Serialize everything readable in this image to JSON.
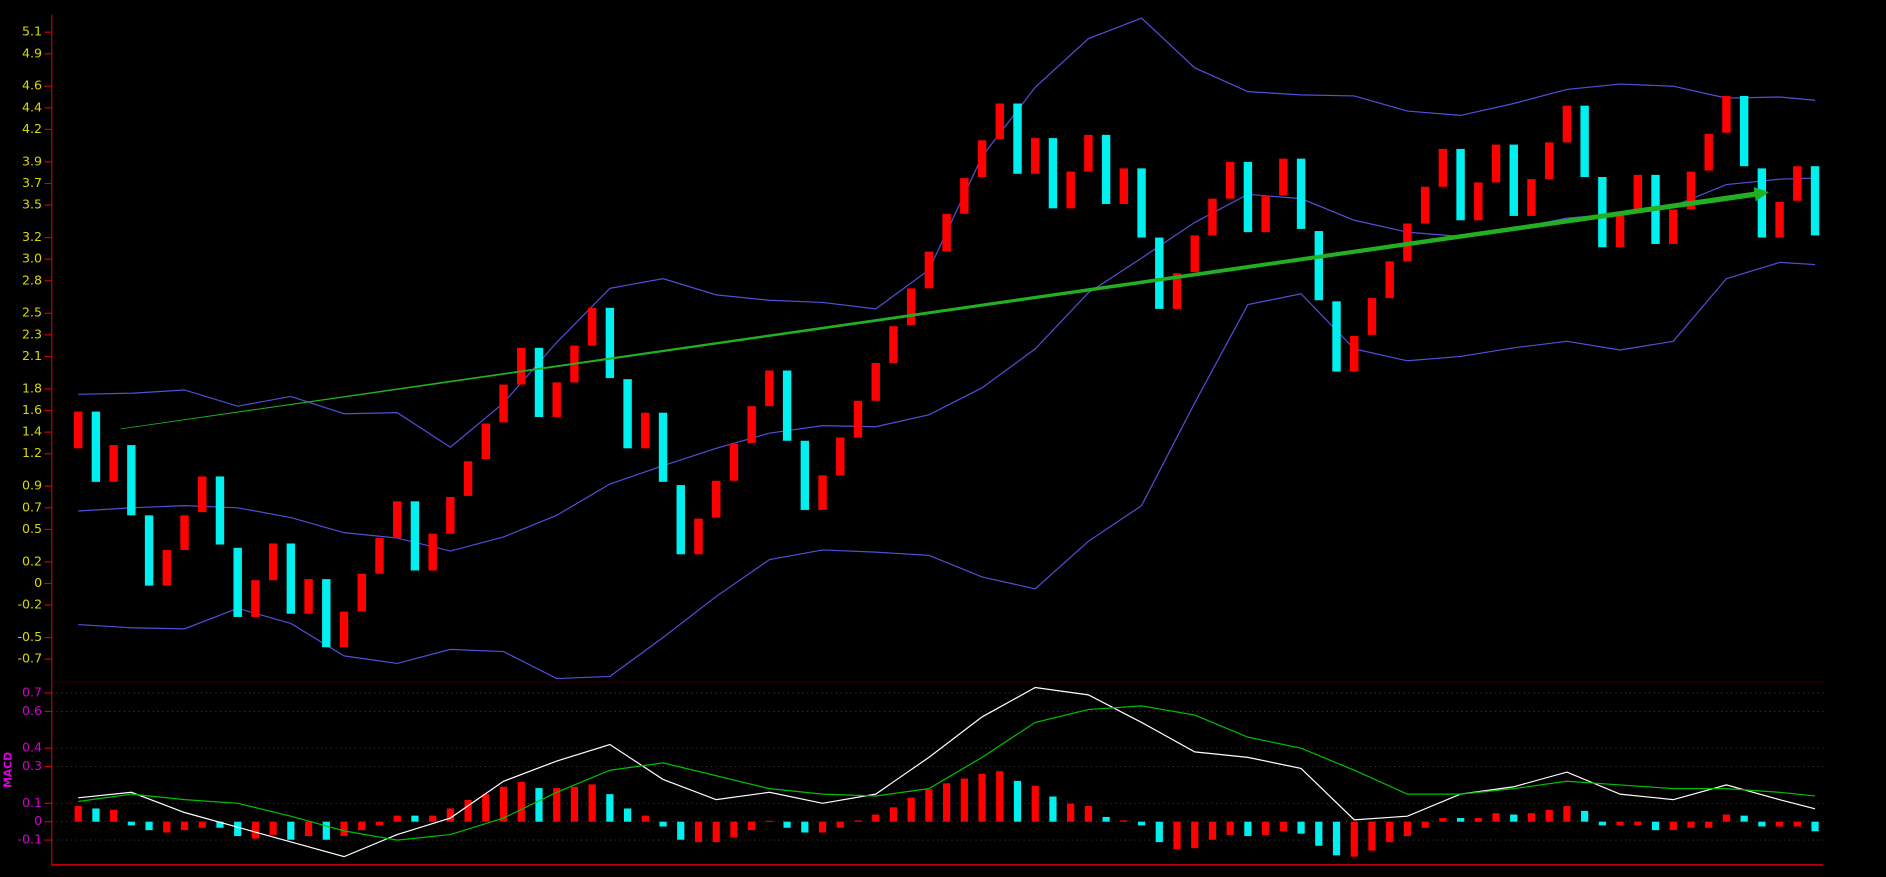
{
  "chart_data": [
    {
      "type": "candlestick",
      "open": [
        1.25,
        1.59,
        0.94,
        1.28,
        0.63,
        -0.02,
        0.31,
        0.66,
        0.99,
        0.33,
        -0.31,
        0.03,
        0.37,
        -0.28,
        0.04,
        -0.59,
        -0.26,
        0.09,
        0.42,
        0.76,
        0.12,
        0.46,
        0.81,
        1.15,
        1.49,
        1.84,
        2.18,
        1.54,
        1.86,
        2.2,
        2.55,
        1.89,
        1.25,
        1.58,
        0.91,
        0.27,
        0.61,
        0.95,
        1.3,
        1.64,
        1.97,
        1.32,
        0.68,
        1.0,
        1.35,
        1.69,
        2.04,
        2.39,
        2.73,
        3.07,
        3.42,
        3.76,
        4.11,
        4.44,
        3.79,
        4.12,
        3.47,
        3.81,
        4.15,
        3.51,
        3.84,
        3.2,
        2.54,
        2.88,
        3.22,
        3.56,
        3.9,
        3.25,
        3.59,
        3.93,
        3.26,
        2.61,
        1.96,
        2.3,
        2.64,
        2.98,
        3.33,
        3.67,
        4.02,
        3.36,
        3.71,
        4.06,
        3.4,
        3.74,
        4.08,
        4.42,
        3.76,
        3.11,
        3.43,
        3.78,
        3.14,
        3.46,
        3.82,
        4.17,
        4.51,
        3.84,
        3.2,
        3.54,
        3.86
      ],
      "close": [
        1.59,
        0.94,
        1.28,
        0.63,
        -0.02,
        0.31,
        0.63,
        0.99,
        0.36,
        -0.31,
        0.03,
        0.37,
        -0.28,
        0.04,
        -0.59,
        -0.26,
        0.09,
        0.42,
        0.76,
        0.12,
        0.46,
        0.8,
        1.13,
        1.48,
        1.84,
        2.18,
        1.54,
        1.86,
        2.2,
        2.55,
        1.9,
        1.25,
        1.58,
        0.94,
        0.27,
        0.6,
        0.95,
        1.29,
        1.64,
        1.97,
        1.32,
        0.68,
        1.0,
        1.35,
        1.69,
        2.04,
        2.38,
        2.73,
        3.07,
        3.42,
        3.75,
        4.1,
        4.44,
        3.79,
        4.12,
        3.47,
        3.81,
        4.15,
        3.51,
        3.84,
        3.2,
        2.54,
        2.87,
        3.22,
        3.56,
        3.9,
        3.25,
        3.59,
        3.93,
        3.28,
        2.62,
        1.96,
        2.29,
        2.64,
        2.98,
        3.33,
        3.67,
        4.02,
        3.36,
        3.71,
        4.06,
        3.4,
        3.74,
        4.08,
        4.42,
        3.76,
        3.11,
        3.43,
        3.78,
        3.14,
        3.46,
        3.81,
        4.16,
        4.51,
        3.86,
        3.2,
        3.53,
        3.86,
        3.22
      ],
      "up_color": "#ff0000",
      "down_color": "#00f0f0",
      "bands": [
        {
          "color": "#5050d8",
          "x": [
            0,
            3,
            6,
            9,
            12,
            15,
            18,
            21,
            24,
            27,
            30,
            33,
            36,
            39,
            42,
            45,
            48,
            51,
            54,
            57,
            60,
            63,
            66,
            69,
            72,
            75,
            78,
            81,
            84,
            87,
            90,
            93,
            96,
            98
          ],
          "values": [
            1.75,
            1.76,
            1.79,
            1.64,
            1.73,
            1.57,
            1.58,
            1.26,
            1.67,
            2.23,
            2.73,
            2.82,
            2.67,
            2.62,
            2.6,
            2.54,
            2.9,
            3.95,
            4.59,
            5.04,
            5.23,
            4.77,
            4.55,
            4.52,
            4.51,
            4.37,
            4.33,
            4.44,
            4.57,
            4.62,
            4.6,
            4.49,
            4.5,
            4.47
          ]
        },
        {
          "color": "#5050d8",
          "x": [
            0,
            3,
            6,
            9,
            12,
            15,
            18,
            21,
            24,
            27,
            30,
            33,
            36,
            39,
            42,
            45,
            48,
            51,
            54,
            57,
            60,
            63,
            66,
            69,
            72,
            75,
            78,
            81,
            84,
            87,
            90,
            93,
            96,
            98
          ],
          "values": [
            0.67,
            0.7,
            0.72,
            0.7,
            0.61,
            0.47,
            0.42,
            0.3,
            0.43,
            0.63,
            0.92,
            1.09,
            1.25,
            1.39,
            1.46,
            1.45,
            1.56,
            1.81,
            2.17,
            2.69,
            3.01,
            3.34,
            3.6,
            3.56,
            3.36,
            3.25,
            3.21,
            3.28,
            3.38,
            3.42,
            3.49,
            3.69,
            3.74,
            3.75
          ]
        },
        {
          "color": "#5050d8",
          "x": [
            0,
            3,
            6,
            9,
            12,
            15,
            18,
            21,
            24,
            27,
            30,
            33,
            36,
            39,
            42,
            45,
            48,
            51,
            54,
            57,
            60,
            63,
            66,
            69,
            72,
            75,
            78,
            81,
            84,
            87,
            90,
            93,
            96,
            98
          ],
          "values": [
            -0.38,
            -0.41,
            -0.42,
            -0.23,
            -0.37,
            -0.67,
            -0.74,
            -0.61,
            -0.63,
            -0.88,
            -0.86,
            -0.5,
            -0.12,
            0.22,
            0.31,
            0.29,
            0.26,
            0.06,
            -0.05,
            0.39,
            0.72,
            1.67,
            2.58,
            2.68,
            2.17,
            2.06,
            2.1,
            2.18,
            2.24,
            2.16,
            2.24,
            2.82,
            2.97,
            2.95
          ]
        }
      ],
      "trend": {
        "color": "#22b022",
        "x": [
          2.4,
          95.4
        ],
        "values": [
          1.43,
          3.62
        ]
      },
      "ylim": [
        -0.89,
        5.23
      ],
      "yticks": [
        5.1,
        4.9,
        4.6,
        4.4,
        4.2,
        3.9,
        3.7,
        3.5,
        3.2,
        {
          "value": 3,
          "label": "3.0"
        },
        2.8,
        2.5,
        2.3,
        2.1,
        1.8,
        1.6,
        1.4,
        1.2,
        0.9,
        0.7,
        0.5,
        0.2,
        0,
        -0.2,
        -0.5,
        -0.7
      ]
    },
    {
      "type": "macd",
      "title": "MACD",
      "histogram": [
        0.085,
        0.072,
        0.065,
        -0.02,
        -0.046,
        -0.059,
        -0.046,
        -0.033,
        -0.033,
        -0.078,
        -0.092,
        -0.072,
        -0.098,
        -0.078,
        -0.098,
        -0.078,
        -0.046,
        -0.02,
        0.033,
        0.033,
        0.033,
        0.072,
        0.118,
        0.15,
        0.19,
        0.216,
        0.183,
        0.183,
        0.19,
        0.203,
        0.15,
        0.072,
        0.033,
        -0.026,
        -0.098,
        -0.111,
        -0.111,
        -0.085,
        -0.046,
        0.005,
        -0.033,
        -0.059,
        -0.059,
        -0.033,
        0.007,
        0.039,
        0.078,
        0.131,
        0.176,
        0.209,
        0.235,
        0.261,
        0.275,
        0.222,
        0.196,
        0.137,
        0.098,
        0.085,
        0.026,
        0.007,
        -0.02,
        -0.111,
        -0.15,
        -0.144,
        -0.098,
        -0.072,
        -0.078,
        -0.072,
        -0.052,
        -0.065,
        -0.131,
        -0.183,
        -0.19,
        -0.157,
        -0.111,
        -0.078,
        -0.033,
        0.02,
        0.02,
        0.02,
        0.046,
        0.039,
        0.046,
        0.065,
        0.085,
        0.059,
        -0.02,
        -0.02,
        -0.02,
        -0.046,
        -0.046,
        -0.033,
        -0.033,
        0.039,
        0.033,
        -0.026,
        -0.026,
        -0.026,
        -0.052
      ],
      "series": [
        {
          "color": "#ffffff",
          "x": [
            0,
            3,
            6,
            9,
            12,
            15,
            18,
            21,
            24,
            27,
            30,
            33,
            36,
            39,
            42,
            45,
            48,
            51,
            54,
            57,
            60,
            63,
            66,
            69,
            72,
            75,
            78,
            81,
            84,
            87,
            90,
            93,
            96,
            98
          ],
          "values": [
            0.13,
            0.16,
            0.05,
            -0.03,
            -0.11,
            -0.19,
            -0.07,
            0.02,
            0.22,
            0.33,
            0.42,
            0.23,
            0.12,
            0.16,
            0.1,
            0.15,
            0.35,
            0.57,
            0.73,
            0.69,
            0.54,
            0.38,
            0.35,
            0.29,
            0.01,
            0.03,
            0.15,
            0.19,
            0.27,
            0.15,
            0.12,
            0.2,
            0.12,
            0.07
          ]
        },
        {
          "color": "#00c000",
          "x": [
            0,
            3,
            6,
            9,
            12,
            15,
            18,
            21,
            24,
            27,
            30,
            33,
            36,
            39,
            42,
            45,
            48,
            51,
            54,
            57,
            60,
            63,
            66,
            69,
            72,
            75,
            78,
            81,
            84,
            87,
            90,
            93,
            96,
            98
          ],
          "values": [
            0.11,
            0.15,
            0.12,
            0.1,
            0.03,
            -0.05,
            -0.1,
            -0.07,
            0.02,
            0.16,
            0.28,
            0.32,
            0.25,
            0.18,
            0.15,
            0.14,
            0.18,
            0.35,
            0.54,
            0.61,
            0.63,
            0.58,
            0.46,
            0.4,
            0.28,
            0.15,
            0.15,
            0.18,
            0.22,
            0.2,
            0.18,
            0.18,
            0.16,
            0.14
          ]
        }
      ],
      "ylim": [
        -0.235,
        0.74
      ],
      "yticks": [
        0.7,
        0.6,
        0.4,
        0.3,
        0.1,
        0,
        -0.1
      ],
      "grid": true
    }
  ]
}
